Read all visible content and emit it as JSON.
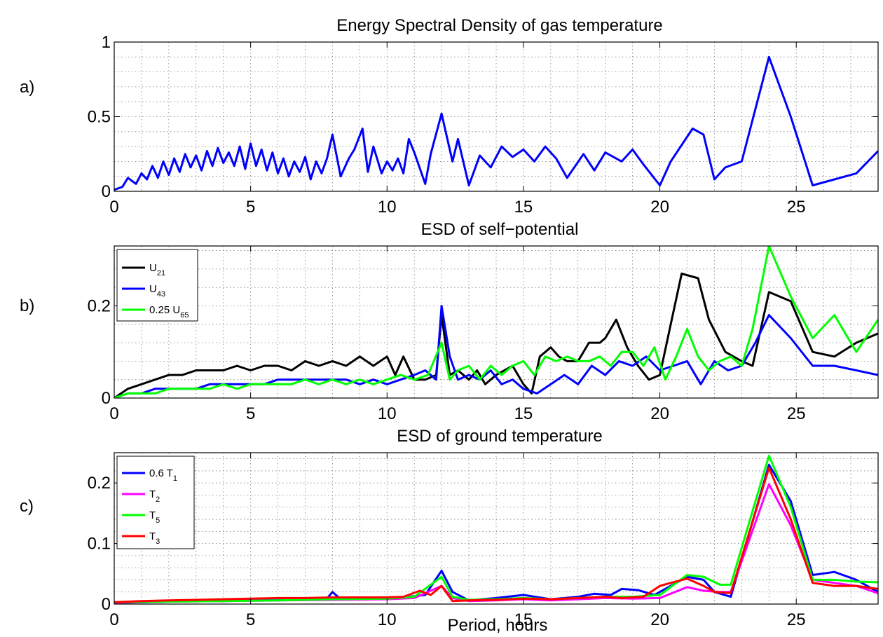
{
  "figure": {
    "panel_labels": [
      "a)",
      "b)",
      "c)"
    ],
    "xlabel": "Period, hours"
  },
  "chart_data": [
    {
      "type": "line",
      "title": "Energy Spectral Density of gas temperature",
      "xlabel": "",
      "ylabel": "",
      "xlim": [
        0,
        28
      ],
      "ylim": [
        0,
        1
      ],
      "xticks": [
        0,
        5,
        10,
        15,
        20,
        25
      ],
      "yticks": [
        0,
        0.5,
        1
      ],
      "ytick_labels": [
        "0",
        "0.5",
        "1"
      ],
      "grid": true,
      "legend": null,
      "series": [
        {
          "color": "#0000ff",
          "x": [
            0,
            0.3,
            0.5,
            0.8,
            1.0,
            1.2,
            1.4,
            1.6,
            1.8,
            2.0,
            2.2,
            2.4,
            2.6,
            2.8,
            3.0,
            3.2,
            3.4,
            3.6,
            3.8,
            4.0,
            4.2,
            4.4,
            4.6,
            4.8,
            5.0,
            5.2,
            5.4,
            5.6,
            5.8,
            6.0,
            6.2,
            6.4,
            6.6,
            6.8,
            7.0,
            7.2,
            7.4,
            7.6,
            7.8,
            8.0,
            8.3,
            8.6,
            8.8,
            9.1,
            9.3,
            9.5,
            9.8,
            10.0,
            10.2,
            10.4,
            10.6,
            10.8,
            11.0,
            11.4,
            11.6,
            12.0,
            12.4,
            12.6,
            13.0,
            13.4,
            13.8,
            14.2,
            14.6,
            15.0,
            15.4,
            15.8,
            16.2,
            16.6,
            17.2,
            17.6,
            18.0,
            18.6,
            19.0,
            19.4,
            20.0,
            20.4,
            21.2,
            21.6,
            22.0,
            22.4,
            23.0,
            24.0,
            24.8,
            25.6,
            26.4,
            27.2,
            28.0
          ],
          "y": [
            0.01,
            0.03,
            0.09,
            0.05,
            0.12,
            0.08,
            0.17,
            0.09,
            0.2,
            0.11,
            0.22,
            0.13,
            0.25,
            0.16,
            0.24,
            0.14,
            0.27,
            0.17,
            0.29,
            0.19,
            0.26,
            0.17,
            0.3,
            0.15,
            0.32,
            0.17,
            0.28,
            0.14,
            0.26,
            0.12,
            0.22,
            0.1,
            0.2,
            0.13,
            0.23,
            0.08,
            0.2,
            0.12,
            0.22,
            0.38,
            0.1,
            0.22,
            0.28,
            0.42,
            0.13,
            0.3,
            0.12,
            0.2,
            0.14,
            0.22,
            0.12,
            0.35,
            0.26,
            0.05,
            0.25,
            0.52,
            0.2,
            0.35,
            0.04,
            0.24,
            0.16,
            0.3,
            0.23,
            0.28,
            0.2,
            0.3,
            0.22,
            0.09,
            0.25,
            0.14,
            0.26,
            0.2,
            0.28,
            0.18,
            0.04,
            0.2,
            0.42,
            0.38,
            0.08,
            0.16,
            0.2,
            0.9,
            0.5,
            0.04,
            0.08,
            0.12,
            0.27
          ]
        }
      ]
    },
    {
      "type": "line",
      "title": "ESD of self−potential",
      "xlabel": "",
      "ylabel": "",
      "xlim": [
        0,
        28
      ],
      "ylim": [
        0,
        0.33
      ],
      "xticks": [
        0,
        5,
        10,
        15,
        20,
        25
      ],
      "yticks": [
        0,
        0.2
      ],
      "ytick_labels": [
        "0",
        "0.2"
      ],
      "grid": true,
      "legend": {
        "placement": "top-left",
        "entries": [
          {
            "base": "U",
            "sub": "21",
            "prefix": "",
            "color": "#000000"
          },
          {
            "base": "U",
            "sub": "43",
            "prefix": "",
            "color": "#0000ff"
          },
          {
            "base": "U",
            "sub": "65",
            "prefix": "0.25 ",
            "color": "#00ff00"
          }
        ]
      },
      "series": [
        {
          "name": "U21",
          "color": "#000000",
          "x": [
            0,
            0.5,
            1.0,
            1.5,
            2.0,
            2.5,
            3.0,
            3.5,
            4.0,
            4.5,
            5.0,
            5.5,
            6.0,
            6.5,
            7.0,
            7.5,
            8.0,
            8.5,
            9.0,
            9.5,
            10.0,
            10.3,
            10.6,
            11.0,
            11.4,
            11.8,
            12.0,
            12.3,
            12.6,
            13.0,
            13.3,
            13.6,
            14.0,
            14.3,
            14.6,
            15.0,
            15.3,
            15.6,
            16.0,
            16.3,
            16.6,
            17.0,
            17.4,
            17.8,
            18.0,
            18.4,
            18.8,
            19.2,
            19.6,
            20.0,
            20.4,
            20.8,
            21.4,
            21.8,
            22.4,
            23.0,
            23.4,
            24.0,
            24.8,
            25.6,
            26.4,
            27.2,
            28.0
          ],
          "y": [
            0.0,
            0.02,
            0.03,
            0.04,
            0.05,
            0.05,
            0.06,
            0.06,
            0.06,
            0.07,
            0.06,
            0.07,
            0.07,
            0.06,
            0.08,
            0.07,
            0.08,
            0.07,
            0.09,
            0.07,
            0.09,
            0.05,
            0.09,
            0.04,
            0.04,
            0.05,
            0.18,
            0.05,
            0.06,
            0.04,
            0.06,
            0.03,
            0.05,
            0.06,
            0.07,
            0.03,
            0.01,
            0.09,
            0.11,
            0.09,
            0.08,
            0.08,
            0.12,
            0.12,
            0.13,
            0.17,
            0.11,
            0.07,
            0.04,
            0.05,
            0.16,
            0.27,
            0.26,
            0.17,
            0.1,
            0.08,
            0.07,
            0.23,
            0.21,
            0.1,
            0.09,
            0.12,
            0.14
          ]
        },
        {
          "name": "U43",
          "color": "#0000ff",
          "x": [
            0,
            0.5,
            1.0,
            1.5,
            2.0,
            2.5,
            3.0,
            3.5,
            4.0,
            4.5,
            5.0,
            5.5,
            6.0,
            6.5,
            7.0,
            7.5,
            8.0,
            8.5,
            9.0,
            9.5,
            10.0,
            10.5,
            11.0,
            11.4,
            11.8,
            12.0,
            12.3,
            12.6,
            13.0,
            13.4,
            13.8,
            14.2,
            14.6,
            15.0,
            15.5,
            16.0,
            16.5,
            17.0,
            17.5,
            18.0,
            18.5,
            19.0,
            19.5,
            20.0,
            20.5,
            21.0,
            21.5,
            22.0,
            22.5,
            23.0,
            23.5,
            24.0,
            24.8,
            25.6,
            26.4,
            27.2,
            28.0
          ],
          "y": [
            0.0,
            0.01,
            0.01,
            0.02,
            0.02,
            0.02,
            0.02,
            0.03,
            0.03,
            0.03,
            0.03,
            0.03,
            0.04,
            0.04,
            0.04,
            0.04,
            0.04,
            0.04,
            0.03,
            0.04,
            0.03,
            0.04,
            0.05,
            0.06,
            0.04,
            0.2,
            0.09,
            0.04,
            0.05,
            0.04,
            0.06,
            0.03,
            0.04,
            0.02,
            0.01,
            0.03,
            0.05,
            0.03,
            0.07,
            0.05,
            0.08,
            0.07,
            0.09,
            0.06,
            0.07,
            0.08,
            0.03,
            0.08,
            0.06,
            0.07,
            0.12,
            0.18,
            0.13,
            0.07,
            0.07,
            0.06,
            0.05
          ]
        },
        {
          "name": "0.25 U65",
          "color": "#00ff00",
          "x": [
            0,
            0.5,
            1.0,
            1.5,
            2.0,
            2.5,
            3.0,
            3.5,
            4.0,
            4.5,
            5.0,
            5.5,
            6.0,
            6.5,
            7.0,
            7.5,
            8.0,
            8.5,
            9.0,
            9.5,
            10.0,
            10.5,
            11.0,
            11.5,
            12.0,
            12.3,
            12.6,
            13.0,
            13.4,
            13.8,
            14.2,
            14.6,
            15.0,
            15.4,
            15.8,
            16.2,
            16.6,
            17.0,
            17.4,
            17.8,
            18.2,
            18.6,
            19.0,
            19.4,
            19.8,
            20.2,
            20.6,
            21.0,
            21.4,
            21.8,
            22.2,
            22.6,
            23.0,
            23.4,
            24.0,
            24.8,
            25.6,
            26.4,
            27.2,
            28.0
          ],
          "y": [
            0.0,
            0.01,
            0.01,
            0.01,
            0.02,
            0.02,
            0.02,
            0.02,
            0.03,
            0.02,
            0.03,
            0.03,
            0.03,
            0.03,
            0.04,
            0.03,
            0.04,
            0.03,
            0.04,
            0.03,
            0.04,
            0.05,
            0.04,
            0.05,
            0.12,
            0.04,
            0.06,
            0.07,
            0.04,
            0.07,
            0.05,
            0.07,
            0.08,
            0.05,
            0.09,
            0.08,
            0.09,
            0.08,
            0.08,
            0.09,
            0.07,
            0.1,
            0.1,
            0.07,
            0.11,
            0.04,
            0.09,
            0.15,
            0.09,
            0.06,
            0.08,
            0.09,
            0.07,
            0.15,
            0.33,
            0.22,
            0.13,
            0.18,
            0.1,
            0.17
          ]
        }
      ]
    },
    {
      "type": "line",
      "title": "ESD of ground temperature",
      "xlabel": "Period, hours",
      "ylabel": "",
      "xlim": [
        0,
        28
      ],
      "ylim": [
        0,
        0.25
      ],
      "xticks": [
        0,
        5,
        10,
        15,
        20,
        25
      ],
      "yticks": [
        0,
        0.1,
        0.2
      ],
      "ytick_labels": [
        "0",
        "0.1",
        "0.2"
      ],
      "grid": true,
      "legend": {
        "placement": "top-left",
        "entries": [
          {
            "base": "T",
            "sub": "1",
            "prefix": "0.6  ",
            "color": "#0000ff"
          },
          {
            "base": "T",
            "sub": "2",
            "prefix": "",
            "color": "#ff00ff"
          },
          {
            "base": "T",
            "sub": "5",
            "prefix": "",
            "color": "#00ff00"
          },
          {
            "base": "T",
            "sub": "3",
            "prefix": "",
            "color": "#ff0000"
          }
        ]
      },
      "series": [
        {
          "name": "0.6 T1",
          "color": "#0000ff",
          "x": [
            0,
            1,
            2,
            3,
            4,
            5,
            6,
            7,
            7.8,
            8.0,
            8.3,
            9,
            10,
            10.8,
            11.4,
            12.0,
            12.4,
            13,
            14,
            15,
            16,
            17,
            17.6,
            18.2,
            18.6,
            19.2,
            19.8,
            20.4,
            21.0,
            21.6,
            22.0,
            22.6,
            24.0,
            24.8,
            25.6,
            26.4,
            27.2,
            28.0
          ],
          "y": [
            0.002,
            0.003,
            0.004,
            0.005,
            0.005,
            0.006,
            0.007,
            0.008,
            0.009,
            0.02,
            0.008,
            0.01,
            0.011,
            0.012,
            0.015,
            0.055,
            0.02,
            0.006,
            0.01,
            0.015,
            0.008,
            0.012,
            0.017,
            0.015,
            0.025,
            0.023,
            0.015,
            0.03,
            0.045,
            0.04,
            0.02,
            0.012,
            0.23,
            0.17,
            0.048,
            0.053,
            0.04,
            0.02
          ]
        },
        {
          "name": "T2",
          "color": "#ff00ff",
          "x": [
            0,
            2,
            4,
            6,
            8,
            10,
            11,
            12.0,
            12.4,
            13,
            14,
            15,
            16,
            17,
            18,
            19,
            20,
            21.0,
            21.6,
            22.2,
            22.6,
            24.0,
            24.8,
            25.6,
            26.4,
            27.2,
            28.0
          ],
          "y": [
            0.002,
            0.004,
            0.005,
            0.006,
            0.007,
            0.008,
            0.01,
            0.03,
            0.01,
            0.005,
            0.006,
            0.008,
            0.006,
            0.008,
            0.01,
            0.009,
            0.01,
            0.028,
            0.022,
            0.02,
            0.02,
            0.198,
            0.13,
            0.04,
            0.035,
            0.03,
            0.018
          ]
        },
        {
          "name": "T5",
          "color": "#00ff00",
          "x": [
            0,
            2,
            4,
            6,
            8,
            10,
            11,
            12.0,
            12.4,
            13,
            14,
            15,
            16,
            17,
            18,
            19,
            20,
            21.0,
            21.6,
            22.2,
            22.6,
            24.0,
            24.8,
            25.6,
            26.4,
            27.2,
            28.0
          ],
          "y": [
            0.003,
            0.004,
            0.005,
            0.006,
            0.008,
            0.009,
            0.012,
            0.045,
            0.012,
            0.007,
            0.008,
            0.01,
            0.008,
            0.01,
            0.012,
            0.012,
            0.015,
            0.048,
            0.045,
            0.032,
            0.032,
            0.245,
            0.16,
            0.04,
            0.04,
            0.037,
            0.036
          ]
        },
        {
          "name": "T3",
          "color": "#ff0000",
          "x": [
            0,
            1,
            2,
            3,
            4,
            5,
            6,
            7,
            8,
            9,
            10,
            10.6,
            11.2,
            11.6,
            12.0,
            12.4,
            13,
            14,
            15,
            16,
            17,
            18,
            18.6,
            19.4,
            20.0,
            20.4,
            21.0,
            21.6,
            22.0,
            22.6,
            24.0,
            24.8,
            25.6,
            26.4,
            27.2,
            28.0
          ],
          "y": [
            0.003,
            0.005,
            0.006,
            0.007,
            0.008,
            0.009,
            0.01,
            0.01,
            0.011,
            0.011,
            0.011,
            0.012,
            0.022,
            0.015,
            0.03,
            0.005,
            0.006,
            0.007,
            0.009,
            0.008,
            0.01,
            0.012,
            0.01,
            0.012,
            0.03,
            0.035,
            0.042,
            0.03,
            0.02,
            0.018,
            0.225,
            0.14,
            0.035,
            0.03,
            0.03,
            0.025
          ]
        }
      ]
    }
  ]
}
